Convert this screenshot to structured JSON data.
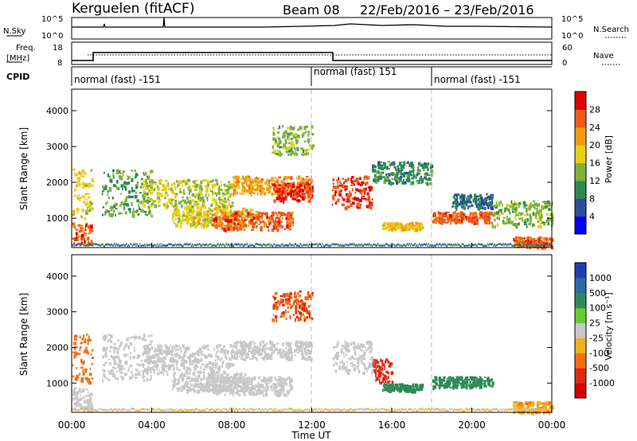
{
  "header": {
    "station": "Kerguelen (fitACF)",
    "beam": "Beam 08",
    "date_range": "22/Feb/2016 – 23/Feb/2016"
  },
  "noise_panel": {
    "left_label": "N.Sky",
    "right_label": "N.Search",
    "left_ticks": [
      "10^5",
      "10^0"
    ],
    "right_ticks": [
      "10^5",
      "10^0"
    ]
  },
  "freq_panel": {
    "left_label_top": "Freq.",
    "left_label_bottom": "[MHz]",
    "right_label": "Nave",
    "left_ticks": [
      "18",
      "8"
    ],
    "right_ticks": [
      "60",
      "0"
    ]
  },
  "cpid_panel": {
    "label": "CPID",
    "segments": [
      {
        "text": "normal (fast) -151",
        "start_h": 0
      },
      {
        "text": "normal (fast) 151",
        "start_h": 12
      },
      {
        "text": "normal (fast) -151",
        "start_h": 18
      }
    ]
  },
  "power_panel": {
    "ylabel": "Slant Range [km]",
    "yticks": [
      "4000",
      "3000",
      "2000",
      "1000"
    ],
    "colorbar_label": "Power [dB]",
    "colorbar_ticks": [
      "28",
      "24",
      "20",
      "16",
      "12",
      "8",
      "4"
    ]
  },
  "velocity_panel": {
    "ylabel": "Slant Range [km]",
    "yticks": [
      "4000",
      "3000",
      "2000",
      "1000"
    ],
    "colorbar_label": "Velocity [m s⁻¹]",
    "colorbar_ticks": [
      "1000",
      "500",
      "100",
      "25",
      "-25",
      "-100",
      "-500",
      "-1000"
    ]
  },
  "x_axis": {
    "label": "Time UT",
    "ticks": [
      "00:00",
      "04:00",
      "08:00",
      "12:00",
      "16:00",
      "20:00",
      "00:00"
    ]
  },
  "colors": {
    "power_scale": [
      "#0000ff",
      "#2a4f9a",
      "#2e8a55",
      "#7fb23a",
      "#e7d01a",
      "#f39c12",
      "#f15a1d",
      "#e00000"
    ],
    "velocity_scale": [
      "#1c3fb0",
      "#2c6aa8",
      "#2e8b57",
      "#66cc33",
      "#c8c8c8",
      "#f0b020",
      "#f07010",
      "#e02a10",
      "#d00000"
    ]
  },
  "chart_data": [
    {
      "type": "heatmap",
      "title": "Power",
      "xlabel": "Time UT",
      "ylabel": "Slant Range [km]",
      "xlim": [
        0,
        24
      ],
      "ylim": [
        180,
        4600
      ],
      "colorbar": {
        "label": "Power [dB]",
        "range": [
          0,
          32
        ]
      },
      "regions": [
        {
          "t": [
            0,
            1
          ],
          "r": [
            1000,
            2400
          ],
          "value": 18
        },
        {
          "t": [
            0,
            1
          ],
          "r": [
            250,
            900
          ],
          "value": 26
        },
        {
          "t": [
            1.5,
            4
          ],
          "r": [
            1100,
            2400
          ],
          "value": 12
        },
        {
          "t": [
            3.5,
            8
          ],
          "r": [
            1300,
            2100
          ],
          "value": 16
        },
        {
          "t": [
            5,
            9
          ],
          "r": [
            800,
            1300
          ],
          "value": 18
        },
        {
          "t": [
            7,
            11
          ],
          "r": [
            700,
            1200
          ],
          "value": 26
        },
        {
          "t": [
            8,
            12
          ],
          "r": [
            1700,
            2200
          ],
          "value": 22
        },
        {
          "t": [
            10,
            12
          ],
          "r": [
            1500,
            2000
          ],
          "value": 28
        },
        {
          "t": [
            10,
            12
          ],
          "r": [
            2800,
            3600
          ],
          "value": 14
        },
        {
          "t": [
            13,
            15
          ],
          "r": [
            1300,
            2200
          ],
          "value": 28
        },
        {
          "t": [
            15,
            18
          ],
          "r": [
            2000,
            2600
          ],
          "value": 10
        },
        {
          "t": [
            15.5,
            17.5
          ],
          "r": [
            700,
            900
          ],
          "value": 20
        },
        {
          "t": [
            18,
            21
          ],
          "r": [
            900,
            1200
          ],
          "value": 26
        },
        {
          "t": [
            19,
            21
          ],
          "r": [
            1300,
            1700
          ],
          "value": 8
        },
        {
          "t": [
            21,
            24
          ],
          "r": [
            800,
            1500
          ],
          "value": 14
        },
        {
          "t": [
            22,
            24
          ],
          "r": [
            200,
            500
          ],
          "value": 26
        }
      ]
    },
    {
      "type": "heatmap",
      "title": "Velocity",
      "xlabel": "Time UT",
      "ylabel": "Slant Range [km]",
      "xlim": [
        0,
        24
      ],
      "ylim": [
        180,
        4600
      ],
      "colorbar": {
        "label": "Velocity [m s⁻¹]",
        "ticks": [
          1000,
          500,
          100,
          25,
          -25,
          -100,
          -500,
          -1000
        ]
      },
      "regions": [
        {
          "t": [
            0,
            1
          ],
          "r": [
            1000,
            2400
          ],
          "value": -100
        },
        {
          "t": [
            0,
            1
          ],
          "r": [
            250,
            900
          ],
          "value": 0
        },
        {
          "t": [
            1.5,
            4
          ],
          "r": [
            1100,
            2400
          ],
          "value": 0
        },
        {
          "t": [
            3.5,
            8
          ],
          "r": [
            1300,
            2100
          ],
          "value": 0
        },
        {
          "t": [
            5,
            9
          ],
          "r": [
            800,
            1300
          ],
          "value": 0
        },
        {
          "t": [
            7,
            11
          ],
          "r": [
            700,
            1200
          ],
          "value": 0
        },
        {
          "t": [
            8,
            12
          ],
          "r": [
            1700,
            2200
          ],
          "value": 0
        },
        {
          "t": [
            10,
            12
          ],
          "r": [
            2800,
            3600
          ],
          "value": -300
        },
        {
          "t": [
            13,
            15
          ],
          "r": [
            1300,
            2200
          ],
          "value": 0
        },
        {
          "t": [
            15,
            16
          ],
          "r": [
            1000,
            1700
          ],
          "value": -500
        },
        {
          "t": [
            15.5,
            17.5
          ],
          "r": [
            800,
            1000
          ],
          "value": 100
        },
        {
          "t": [
            18,
            21
          ],
          "r": [
            900,
            1200
          ],
          "value": 100
        },
        {
          "t": [
            22,
            24
          ],
          "r": [
            200,
            500
          ],
          "value": -50
        }
      ]
    }
  ]
}
